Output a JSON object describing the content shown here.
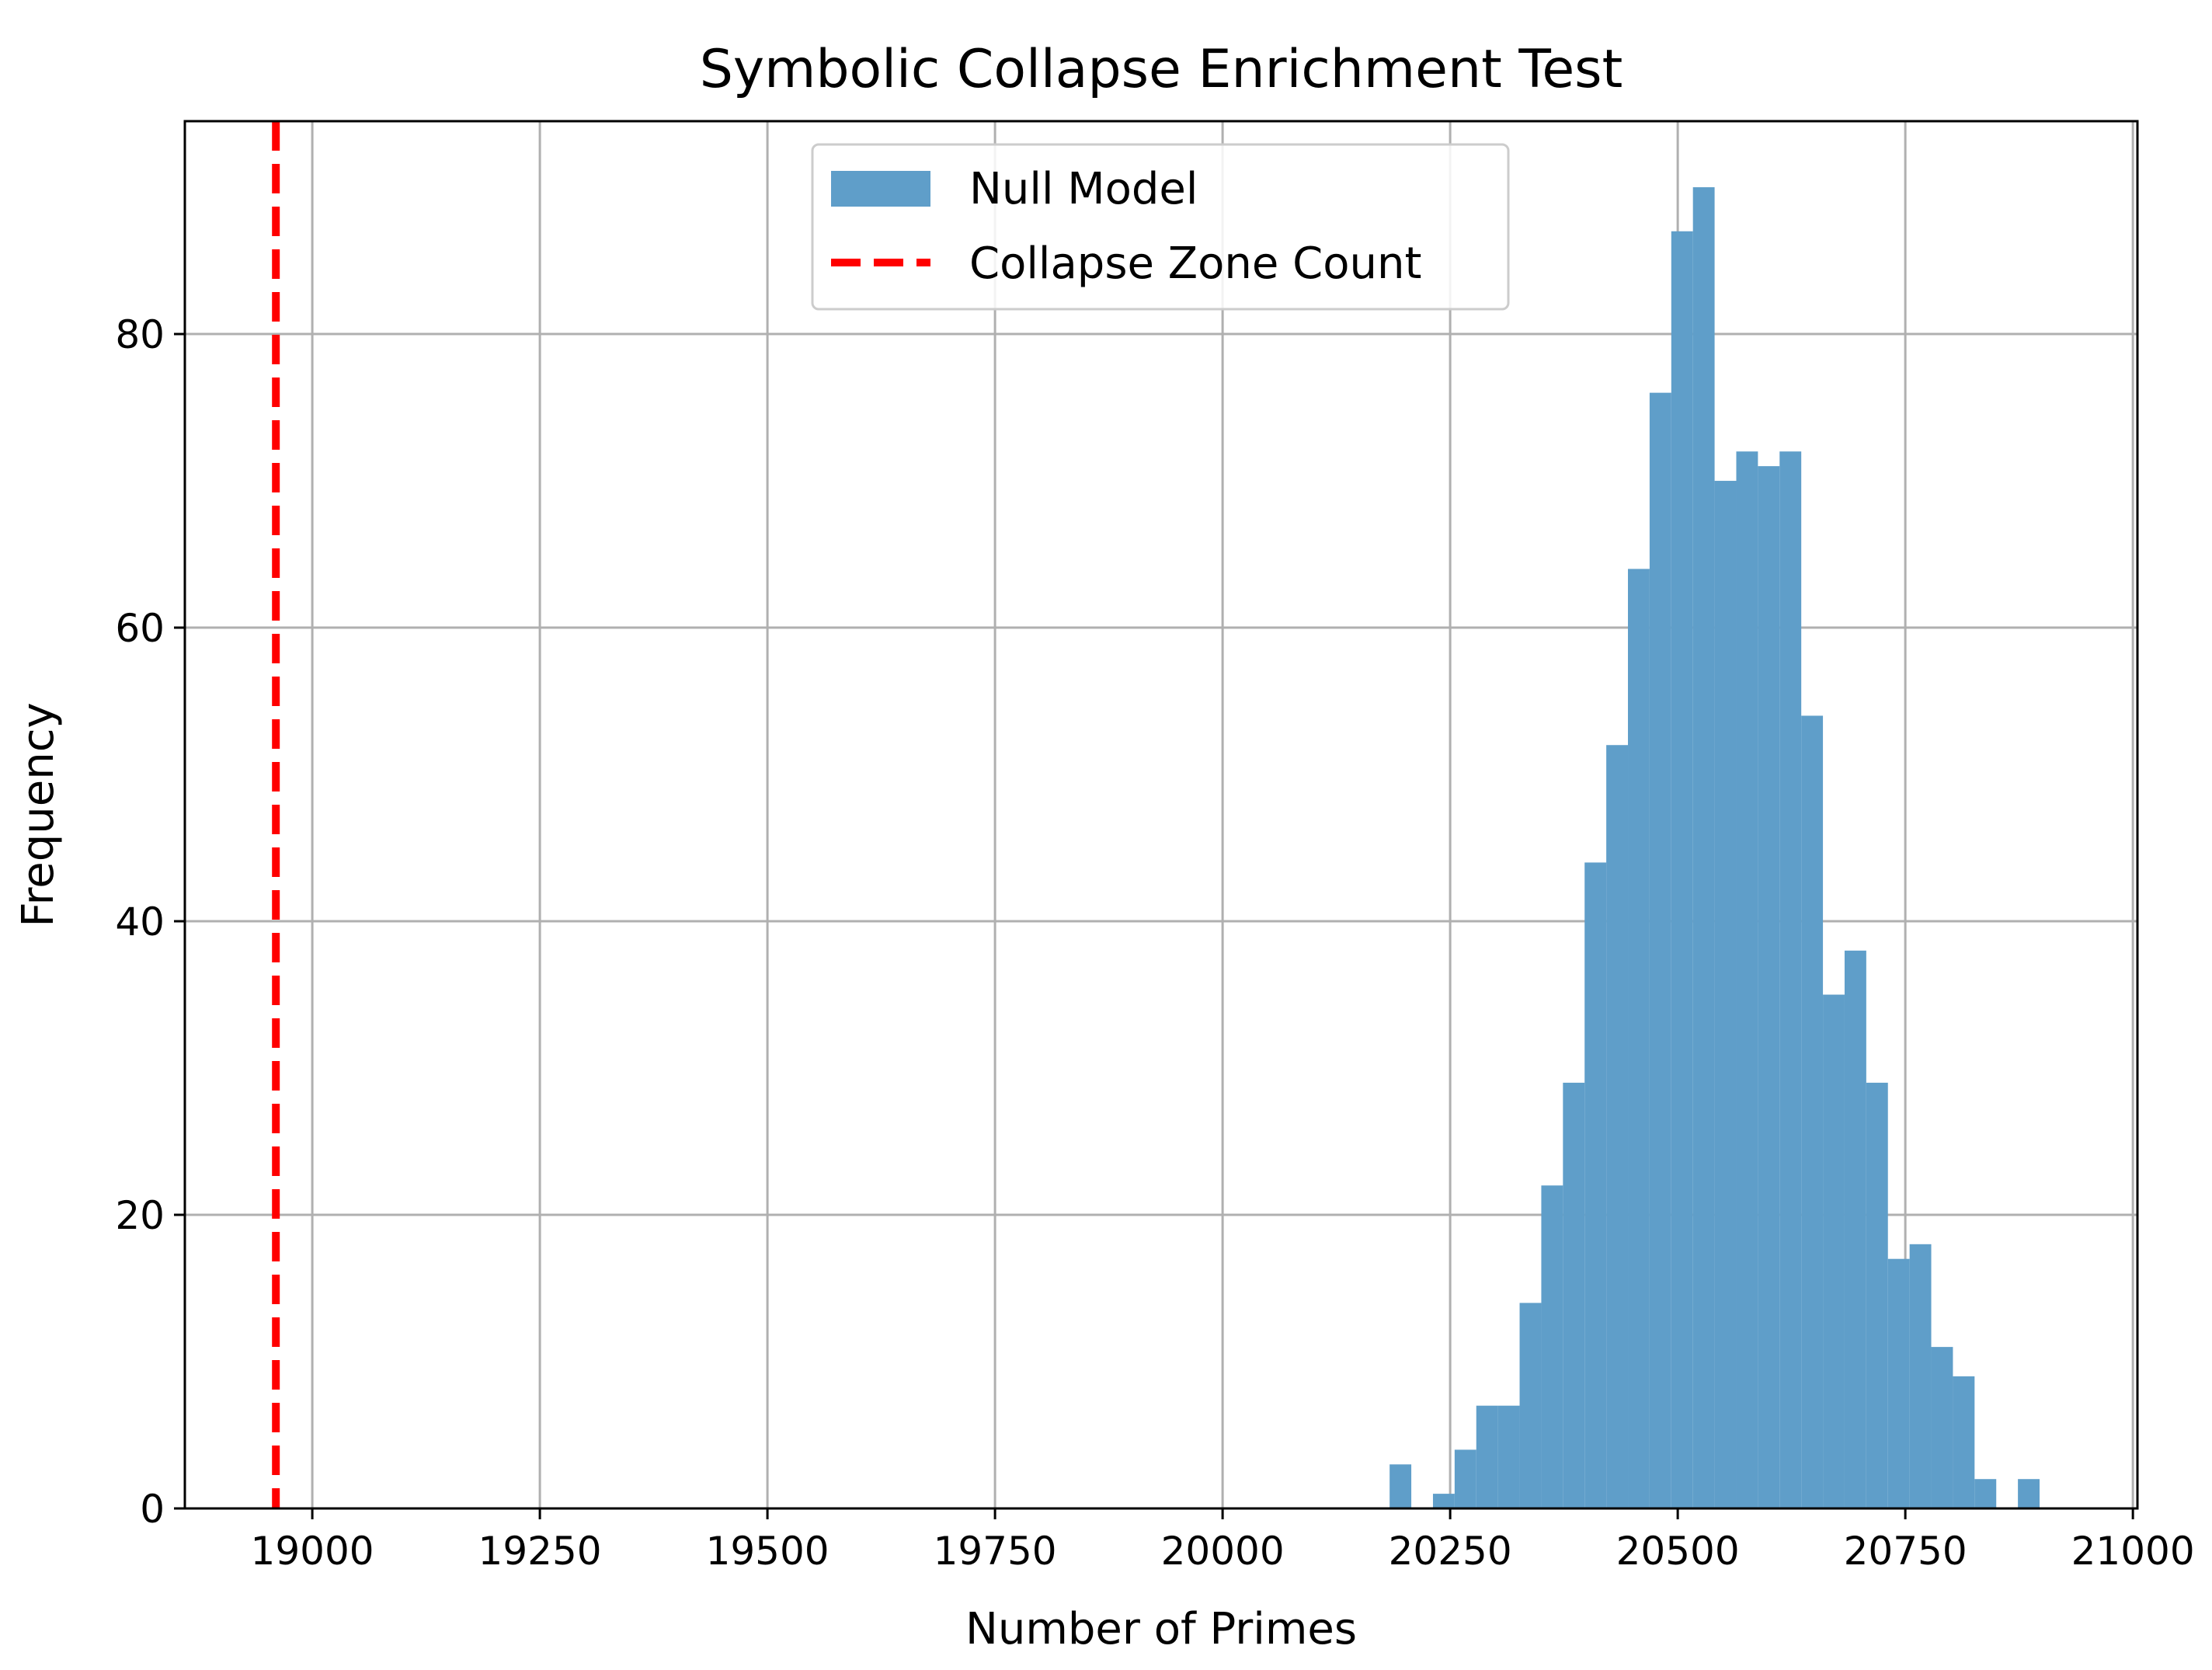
{
  "chart_data": {
    "type": "bar",
    "title": "Symbolic Collapse Enrichment Test",
    "xlabel": "Number of Primes",
    "ylabel": "Frequency",
    "xlim": [
      18860,
      21005
    ],
    "ylim": [
      0,
      94.5
    ],
    "grid": true,
    "legend": {
      "placement": "upper-center",
      "entries": [
        {
          "label": "Null Model",
          "kind": "patch",
          "color": "#5f9ec9"
        },
        {
          "label": "Collapse Zone Count",
          "kind": "dashed-line",
          "color": "#ff0000"
        }
      ]
    },
    "x_ticks": [
      {
        "value": 19000,
        "label": "19000"
      },
      {
        "value": 19250,
        "label": "19250"
      },
      {
        "value": 19500,
        "label": "19500"
      },
      {
        "value": 19750,
        "label": "19750"
      },
      {
        "value": 20000,
        "label": "20000"
      },
      {
        "value": 20250,
        "label": "20250"
      },
      {
        "value": 20500,
        "label": "20500"
      },
      {
        "value": 20750,
        "label": "20750"
      },
      {
        "value": 21000,
        "label": "21000"
      }
    ],
    "y_ticks": [
      {
        "value": 0,
        "label": "0"
      },
      {
        "value": 20,
        "label": "20"
      },
      {
        "value": 40,
        "label": "40"
      },
      {
        "value": 60,
        "label": "60"
      },
      {
        "value": 80,
        "label": "80"
      }
    ],
    "bin_width": 23.8,
    "series": [
      {
        "name": "Null Model",
        "color": "#5f9ec9",
        "bins": [
          {
            "x0": 20183.5,
            "count": 3
          },
          {
            "x0": 20207.3,
            "count": 0
          },
          {
            "x0": 20231.1,
            "count": 1
          },
          {
            "x0": 20254.9,
            "count": 4
          },
          {
            "x0": 20278.7,
            "count": 7
          },
          {
            "x0": 20302.5,
            "count": 7
          },
          {
            "x0": 20326.3,
            "count": 14
          },
          {
            "x0": 20350.1,
            "count": 22
          },
          {
            "x0": 20373.9,
            "count": 29
          },
          {
            "x0": 20397.7,
            "count": 44
          },
          {
            "x0": 20421.5,
            "count": 52
          },
          {
            "x0": 20445.3,
            "count": 64
          },
          {
            "x0": 20469.1,
            "count": 76
          },
          {
            "x0": 20492.9,
            "count": 87
          },
          {
            "x0": 20516.7,
            "count": 90
          },
          {
            "x0": 20540.5,
            "count": 70
          },
          {
            "x0": 20564.3,
            "count": 72
          },
          {
            "x0": 20588.1,
            "count": 71
          },
          {
            "x0": 20611.9,
            "count": 72
          },
          {
            "x0": 20635.7,
            "count": 54
          },
          {
            "x0": 20659.5,
            "count": 35
          },
          {
            "x0": 20683.3,
            "count": 38
          },
          {
            "x0": 20707.1,
            "count": 29
          },
          {
            "x0": 20730.9,
            "count": 17
          },
          {
            "x0": 20754.7,
            "count": 18
          },
          {
            "x0": 20778.5,
            "count": 11
          },
          {
            "x0": 20802.3,
            "count": 9
          },
          {
            "x0": 20826.1,
            "count": 2
          },
          {
            "x0": 20849.9,
            "count": 0
          },
          {
            "x0": 20873.7,
            "count": 2
          }
        ]
      }
    ],
    "reference_line": {
      "name": "Collapse Zone Count",
      "x": 18960,
      "color": "#ff0000",
      "style": "dashed"
    }
  }
}
